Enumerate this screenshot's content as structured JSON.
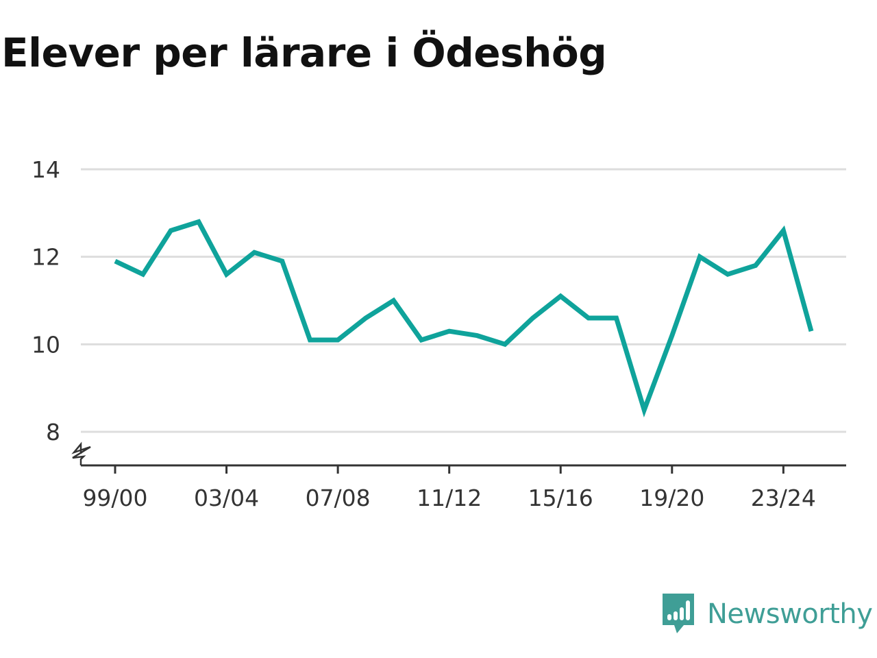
{
  "title": "Elever per lärare i Ödeshög",
  "brand": {
    "name": "Newsworthy",
    "color": "#3f9e96",
    "icon": "bar-chart-speech-bubble-icon"
  },
  "chart_data": {
    "type": "line",
    "title": "Elever per lärare i Ödeshög",
    "xlabel": "",
    "ylabel": "",
    "x": [
      "99/00",
      "00/01",
      "01/02",
      "02/03",
      "03/04",
      "04/05",
      "05/06",
      "06/07",
      "07/08",
      "08/09",
      "09/10",
      "10/11",
      "11/12",
      "12/13",
      "13/14",
      "14/15",
      "15/16",
      "16/17",
      "17/18",
      "18/19",
      "19/20",
      "20/21",
      "21/22",
      "22/23",
      "23/24",
      "24/25"
    ],
    "x_tick_labels": [
      "99/00",
      "03/04",
      "07/08",
      "11/12",
      "15/16",
      "19/20",
      "23/24"
    ],
    "series": [
      {
        "values": [
          11.9,
          11.6,
          12.6,
          12.8,
          11.6,
          12.1,
          11.9,
          10.1,
          10.1,
          10.6,
          11.0,
          10.1,
          10.3,
          10.2,
          10.0,
          10.6,
          11.1,
          10.6,
          10.6,
          8.5,
          10.2,
          12.0,
          11.6,
          11.8,
          12.6,
          10.3
        ],
        "color": "#0fa39b"
      }
    ],
    "yticks": [
      8,
      10,
      12,
      14
    ],
    "ylim": [
      8,
      14
    ],
    "axis_break": true,
    "grid": true,
    "gridline_color": "#dddddd",
    "legend": "none"
  }
}
